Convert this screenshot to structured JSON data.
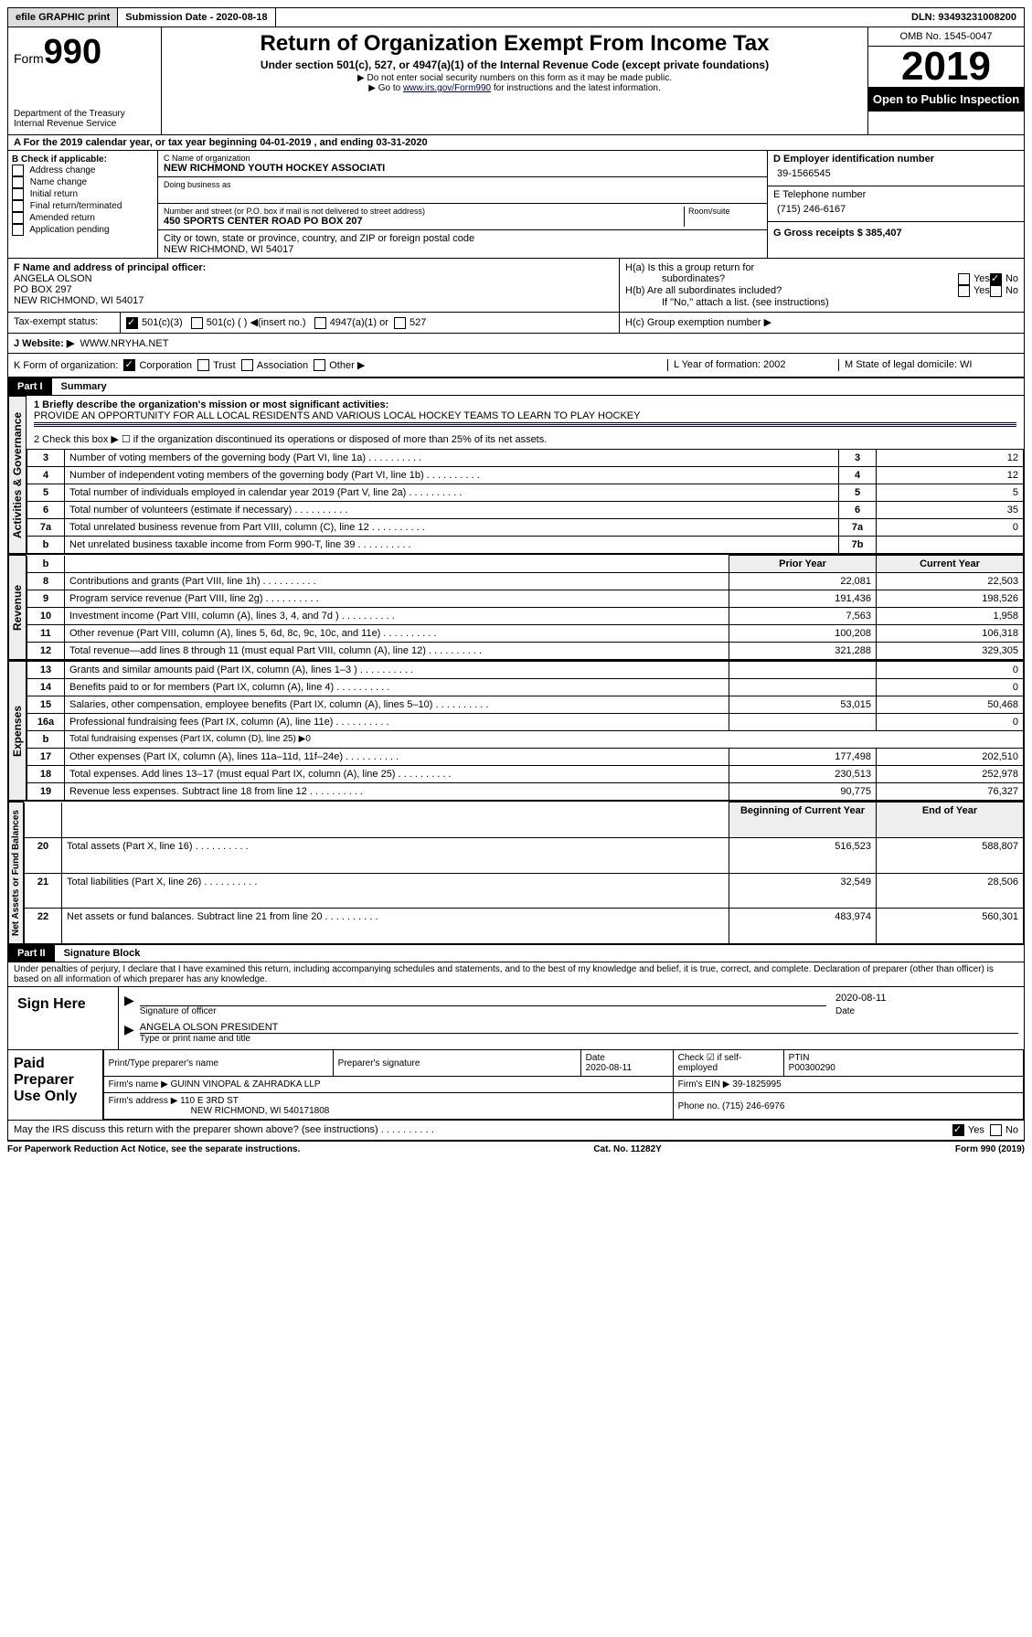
{
  "topbar": {
    "efile": "efile GRAPHIC print",
    "subdate_lbl": "Submission Date - 2020-08-18",
    "dln": "DLN: 93493231008200"
  },
  "header": {
    "form": "Form",
    "num": "990",
    "dept": "Department of the Treasury",
    "irs": "Internal Revenue Service",
    "title": "Return of Organization Exempt From Income Tax",
    "sub1": "Under section 501(c), 527, or 4947(a)(1) of the Internal Revenue Code (except private foundations)",
    "sub2": "▶ Do not enter social security numbers on this form as it may be made public.",
    "sub3a": "▶ Go to ",
    "sub3b": "www.irs.gov/Form990",
    "sub3c": " for instructions and the latest information.",
    "omb": "OMB No. 1545-0047",
    "year": "2019",
    "open": "Open to Public Inspection"
  },
  "lineA": "A For the 2019 calendar year, or tax year beginning 04-01-2019   , and ending 03-31-2020",
  "boxB": {
    "hdr": "B Check if applicable:",
    "items": [
      "Address change",
      "Name change",
      "Initial return",
      "Final return/terminated",
      "Amended return",
      "Application pending"
    ]
  },
  "boxC": {
    "name_lbl": "C Name of organization",
    "name": "NEW RICHMOND YOUTH HOCKEY ASSOCIATI",
    "dba_lbl": "Doing business as",
    "dba": "",
    "street_lbl": "Number and street (or P.O. box if mail is not delivered to street address)",
    "room_lbl": "Room/suite",
    "street": "450 SPORTS CENTER ROAD PO BOX 207",
    "city_lbl": "City or town, state or province, country, and ZIP or foreign postal code",
    "city": "NEW RICHMOND, WI  54017"
  },
  "boxD": {
    "lbl": "D Employer identification number",
    "val": "39-1566545"
  },
  "boxE": {
    "lbl": "E Telephone number",
    "val": "(715) 246-6167"
  },
  "boxG": {
    "lbl": "G Gross receipts $ 385,407"
  },
  "boxF": {
    "lbl": "F Name and address of principal officer:",
    "l1": "ANGELA OLSON",
    "l2": "PO BOX 297",
    "l3": "NEW RICHMOND, WI  54017"
  },
  "boxH": {
    "a": "H(a)  Is this a group return for",
    "a2": "subordinates?",
    "yn_yes": "Yes",
    "yn_no": "No",
    "b": "H(b)  Are all subordinates included?",
    "note": "If \"No,\" attach a list. (see instructions)",
    "c": "H(c)  Group exemption number ▶"
  },
  "taxstat": {
    "lbl": "Tax-exempt status:",
    "c1": "501(c)(3)",
    "c2": "501(c) (  ) ◀(insert no.)",
    "c3": "4947(a)(1) or",
    "c4": "527"
  },
  "boxJ": {
    "lbl": "J  Website: ▶",
    "val": "WWW.NRYHA.NET"
  },
  "boxK": {
    "lbl": "K Form of organization:",
    "c1": "Corporation",
    "c2": "Trust",
    "c3": "Association",
    "c4": "Other ▶"
  },
  "boxL": {
    "lbl": "L Year of formation: 2002"
  },
  "boxM": {
    "lbl": "M State of legal domicile: WI"
  },
  "part1": {
    "hdr": "Part I",
    "title": "Summary"
  },
  "summary": {
    "l1": "1  Briefly describe the organization's mission or most significant activities:",
    "mission": "PROVIDE AN OPPORTUNITY FOR ALL LOCAL RESIDENTS AND VARIOUS LOCAL HOCKEY TEAMS TO LEARN TO PLAY HOCKEY",
    "l2": "2  Check this box ▶ ☐  if the organization discontinued its operations or disposed of more than 25% of its net assets.",
    "rows": [
      {
        "n": "3",
        "t": "Number of voting members of the governing body (Part VI, line 1a)",
        "b": "3",
        "v": "12"
      },
      {
        "n": "4",
        "t": "Number of independent voting members of the governing body (Part VI, line 1b)",
        "b": "4",
        "v": "12"
      },
      {
        "n": "5",
        "t": "Total number of individuals employed in calendar year 2019 (Part V, line 2a)",
        "b": "5",
        "v": "5"
      },
      {
        "n": "6",
        "t": "Total number of volunteers (estimate if necessary)",
        "b": "6",
        "v": "35"
      },
      {
        "n": "7a",
        "t": "Total unrelated business revenue from Part VIII, column (C), line 12",
        "b": "7a",
        "v": "0"
      },
      {
        "n": "b",
        "t": "Net unrelated business taxable income from Form 990-T, line 39",
        "b": "7b",
        "v": ""
      }
    ]
  },
  "revenue": {
    "hprior": "Prior Year",
    "hcurr": "Current Year",
    "rows": [
      {
        "n": "8",
        "t": "Contributions and grants (Part VIII, line 1h)",
        "p": "22,081",
        "c": "22,503"
      },
      {
        "n": "9",
        "t": "Program service revenue (Part VIII, line 2g)",
        "p": "191,436",
        "c": "198,526"
      },
      {
        "n": "10",
        "t": "Investment income (Part VIII, column (A), lines 3, 4, and 7d )",
        "p": "7,563",
        "c": "1,958"
      },
      {
        "n": "11",
        "t": "Other revenue (Part VIII, column (A), lines 5, 6d, 8c, 9c, 10c, and 11e)",
        "p": "100,208",
        "c": "106,318"
      },
      {
        "n": "12",
        "t": "Total revenue—add lines 8 through 11 (must equal Part VIII, column (A), line 12)",
        "p": "321,288",
        "c": "329,305"
      }
    ]
  },
  "expenses": {
    "rows": [
      {
        "n": "13",
        "t": "Grants and similar amounts paid (Part IX, column (A), lines 1–3 )",
        "p": "",
        "c": "0"
      },
      {
        "n": "14",
        "t": "Benefits paid to or for members (Part IX, column (A), line 4)",
        "p": "",
        "c": "0"
      },
      {
        "n": "15",
        "t": "Salaries, other compensation, employee benefits (Part IX, column (A), lines 5–10)",
        "p": "53,015",
        "c": "50,468"
      },
      {
        "n": "16a",
        "t": "Professional fundraising fees (Part IX, column (A), line 11e)",
        "p": "",
        "c": "0"
      },
      {
        "n": "b",
        "t": "Total fundraising expenses (Part IX, column (D), line 25) ▶0",
        "p": "-",
        "c": "-"
      },
      {
        "n": "17",
        "t": "Other expenses (Part IX, column (A), lines 11a–11d, 11f–24e)",
        "p": "177,498",
        "c": "202,510"
      },
      {
        "n": "18",
        "t": "Total expenses. Add lines 13–17 (must equal Part IX, column (A), line 25)",
        "p": "230,513",
        "c": "252,978"
      },
      {
        "n": "19",
        "t": "Revenue less expenses. Subtract line 18 from line 12",
        "p": "90,775",
        "c": "76,327"
      }
    ]
  },
  "netassets": {
    "hbeg": "Beginning of Current Year",
    "hend": "End of Year",
    "rows": [
      {
        "n": "20",
        "t": "Total assets (Part X, line 16)",
        "p": "516,523",
        "c": "588,807"
      },
      {
        "n": "21",
        "t": "Total liabilities (Part X, line 26)",
        "p": "32,549",
        "c": "28,506"
      },
      {
        "n": "22",
        "t": "Net assets or fund balances. Subtract line 21 from line 20",
        "p": "483,974",
        "c": "560,301"
      }
    ]
  },
  "part2": {
    "hdr": "Part II",
    "title": "Signature Block"
  },
  "sig": {
    "decl": "Under penalties of perjury, I declare that I have examined this return, including accompanying schedules and statements, and to the best of my knowledge and belief, it is true, correct, and complete. Declaration of preparer (other than officer) is based on all information of which preparer has any knowledge.",
    "here": "Sign Here",
    "sig_lbl": "Signature of officer",
    "date": "2020-08-11",
    "date_lbl": "Date",
    "name": "ANGELA OLSON  PRESIDENT",
    "name_lbl": "Type or print name and title"
  },
  "paid": {
    "hdr": "Paid Preparer Use Only",
    "h1": "Print/Type preparer's name",
    "h2": "Preparer's signature",
    "h3": "Date",
    "h4": "Check ☑ if self-employed",
    "h5": "PTIN",
    "date": "2020-08-11",
    "ptin": "P00300290",
    "firm_lbl": "Firm's name   ▶",
    "firm": "GUINN VINOPAL & ZAHRADKA LLP",
    "ein_lbl": "Firm's EIN ▶ 39-1825995",
    "addr_lbl": "Firm's address ▶",
    "addr1": "110 E 3RD ST",
    "addr2": "NEW RICHMOND, WI  540171808",
    "phone": "Phone no. (715) 246-6976"
  },
  "discuss": "May the IRS discuss this return with the preparer shown above? (see instructions)",
  "footer": {
    "l": "For Paperwork Reduction Act Notice, see the separate instructions.",
    "c": "Cat. No. 11282Y",
    "r": "Form 990 (2019)"
  },
  "tabs": {
    "ag": "Activities & Governance",
    "rev": "Revenue",
    "exp": "Expenses",
    "na": "Net Assets or Fund Balances"
  }
}
